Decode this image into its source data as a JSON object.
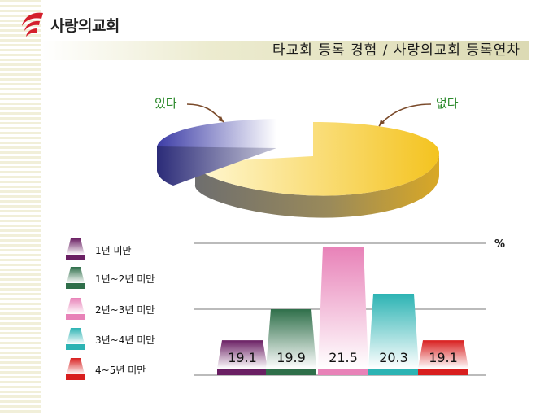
{
  "header": {
    "logo_text": "사랑의교회",
    "title": "타교회 등록 경험 / 사랑의교회 등록연차"
  },
  "colors": {
    "logo_red": "#d41f2b",
    "pie_yes": "#4a4aa8",
    "pie_no": "#f2c230"
  },
  "chart_data": [
    {
      "type": "pie",
      "slices": [
        {
          "label": "있다",
          "value": 27,
          "color": "#4a4aa8"
        },
        {
          "label": "없다",
          "value": 73,
          "color": "#f2c230"
        }
      ]
    },
    {
      "type": "bar",
      "categories": [
        "1년 미만",
        "1년~2년 미만",
        "2년~3년 미만",
        "3년~4년 미만",
        "4~5년 미만"
      ],
      "values": [
        19.1,
        19.9,
        21.5,
        20.3,
        19.1
      ],
      "unit": "%",
      "colors": [
        "#6a1f63",
        "#2f6f4a",
        "#e882b8",
        "#2cb3b3",
        "#d81e1e"
      ],
      "ylim": [
        18.2,
        21.6
      ],
      "grid": true
    }
  ]
}
